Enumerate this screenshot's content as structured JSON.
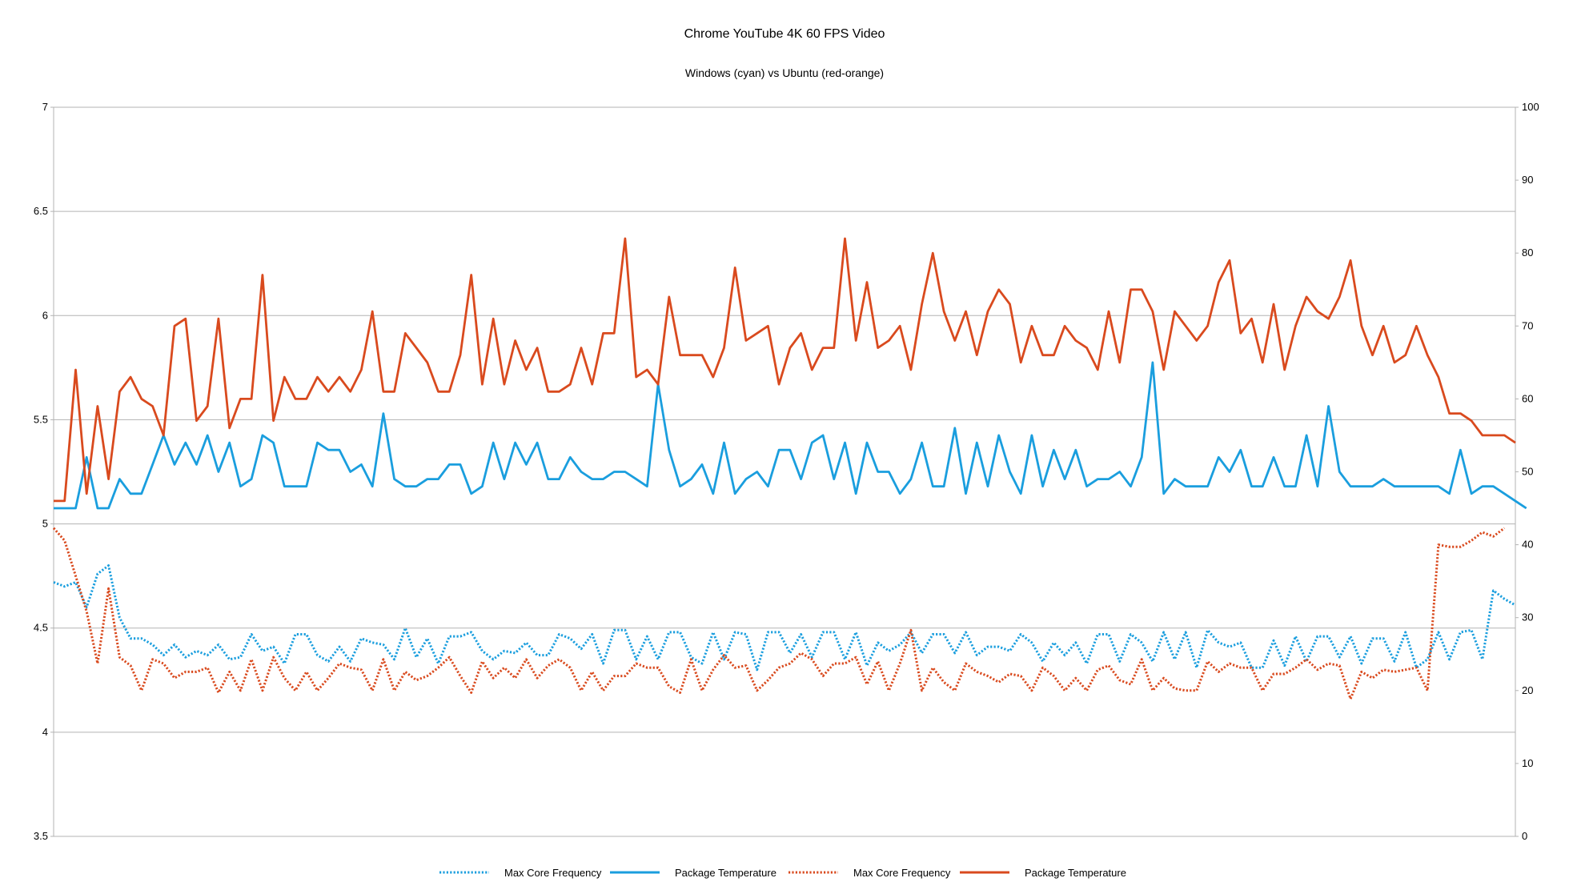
{
  "chart_data": {
    "type": "line",
    "title": "Chrome YouTube 4K 60 FPS Video",
    "subtitle": "Windows (cyan) vs Ubuntu (red-orange)",
    "xlabel": "",
    "ylabel": "",
    "ylim": [
      3.5,
      7
    ],
    "y_ticks": [
      "3.5",
      "4",
      "4.5",
      "5",
      "5.5",
      "6",
      "6.5",
      "7"
    ],
    "y2lim": [
      0,
      100
    ],
    "y2_ticks": [
      "0",
      "10",
      "20",
      "30",
      "40",
      "50",
      "60",
      "70",
      "80",
      "90",
      "100"
    ],
    "grid": true,
    "legend_position": "bottom",
    "colors": {
      "cyan": "#1a9ede",
      "orange": "#d94a1e",
      "grid": "#b3b3b3"
    },
    "series": [
      {
        "name": "Max Core Frequency",
        "axis": "left",
        "color": "#1a9ede",
        "style": "dotted",
        "values": [
          4.72,
          4.7,
          4.72,
          4.6,
          4.76,
          4.8,
          4.55,
          4.45,
          4.45,
          4.42,
          4.37,
          4.42,
          4.36,
          4.39,
          4.37,
          4.42,
          4.35,
          4.36,
          4.47,
          4.39,
          4.41,
          4.33,
          4.47,
          4.47,
          4.37,
          4.34,
          4.41,
          4.34,
          4.45,
          4.43,
          4.42,
          4.35,
          4.5,
          4.36,
          4.45,
          4.33,
          4.46,
          4.46,
          4.48,
          4.39,
          4.35,
          4.39,
          4.38,
          4.43,
          4.37,
          4.37,
          4.47,
          4.45,
          4.4,
          4.47,
          4.33,
          4.49,
          4.49,
          4.35,
          4.46,
          4.35,
          4.48,
          4.48,
          4.36,
          4.33,
          4.48,
          4.35,
          4.48,
          4.47,
          4.3,
          4.48,
          4.48,
          4.38,
          4.47,
          4.36,
          4.48,
          4.48,
          4.35,
          4.48,
          4.32,
          4.43,
          4.39,
          4.42,
          4.48,
          4.38,
          4.47,
          4.47,
          4.38,
          4.48,
          4.37,
          4.41,
          4.41,
          4.39,
          4.47,
          4.43,
          4.34,
          4.43,
          4.37,
          4.43,
          4.33,
          4.47,
          4.47,
          4.34,
          4.47,
          4.43,
          4.34,
          4.48,
          4.35,
          4.48,
          4.31,
          4.49,
          4.43,
          4.41,
          4.43,
          4.31,
          4.31,
          4.44,
          4.32,
          4.46,
          4.34,
          4.46,
          4.46,
          4.36,
          4.46,
          4.33,
          4.45,
          4.45,
          4.34,
          4.48,
          4.31,
          4.35,
          4.48,
          4.35,
          4.48,
          4.49,
          4.35,
          4.68,
          4.64,
          4.61
        ]
      },
      {
        "name": "Package Temperature",
        "axis": "right",
        "color": "#1a9ede",
        "style": "solid",
        "values": [
          45,
          45,
          45,
          52,
          45,
          45,
          49,
          47,
          47,
          51,
          55,
          51,
          54,
          51,
          55,
          50,
          54,
          48,
          49,
          55,
          54,
          48,
          48,
          48,
          54,
          53,
          53,
          50,
          51,
          48,
          58,
          49,
          48,
          48,
          49,
          49,
          51,
          51,
          47,
          48,
          54,
          49,
          54,
          51,
          54,
          49,
          49,
          52,
          50,
          49,
          49,
          50,
          50,
          49,
          48,
          62,
          53,
          48,
          49,
          51,
          47,
          54,
          47,
          49,
          50,
          48,
          53,
          53,
          49,
          54,
          55,
          49,
          54,
          47,
          54,
          50,
          50,
          47,
          49,
          54,
          48,
          48,
          56,
          47,
          54,
          48,
          55,
          50,
          47,
          55,
          48,
          53,
          49,
          53,
          48,
          49,
          49,
          50,
          48,
          52,
          65,
          47,
          49,
          48,
          48,
          48,
          52,
          50,
          53,
          48,
          48,
          52,
          48,
          48,
          55,
          48,
          59,
          50,
          48,
          48,
          48,
          49,
          48,
          48,
          48,
          48,
          48,
          47,
          53,
          47,
          48,
          48,
          47,
          46,
          45
        ]
      },
      {
        "name": "Max Core Frequency",
        "axis": "left",
        "color": "#d94a1e",
        "style": "dotted",
        "values": [
          4.98,
          4.92,
          4.75,
          4.58,
          4.33,
          4.69,
          4.36,
          4.32,
          4.2,
          4.35,
          4.33,
          4.26,
          4.29,
          4.29,
          4.31,
          4.19,
          4.29,
          4.2,
          4.35,
          4.2,
          4.36,
          4.26,
          4.2,
          4.29,
          4.2,
          4.26,
          4.33,
          4.31,
          4.3,
          4.2,
          4.35,
          4.2,
          4.29,
          4.25,
          4.27,
          4.31,
          4.36,
          4.27,
          4.19,
          4.34,
          4.26,
          4.31,
          4.26,
          4.35,
          4.26,
          4.32,
          4.35,
          4.31,
          4.2,
          4.29,
          4.2,
          4.27,
          4.27,
          4.33,
          4.31,
          4.31,
          4.22,
          4.19,
          4.35,
          4.2,
          4.3,
          4.37,
          4.31,
          4.32,
          4.2,
          4.25,
          4.31,
          4.33,
          4.38,
          4.35,
          4.27,
          4.33,
          4.33,
          4.36,
          4.23,
          4.34,
          4.2,
          4.33,
          4.49,
          4.2,
          4.31,
          4.24,
          4.2,
          4.33,
          4.29,
          4.27,
          4.24,
          4.28,
          4.27,
          4.2,
          4.31,
          4.27,
          4.2,
          4.26,
          4.2,
          4.3,
          4.32,
          4.25,
          4.23,
          4.35,
          4.2,
          4.26,
          4.21,
          4.2,
          4.2,
          4.34,
          4.29,
          4.33,
          4.31,
          4.31,
          4.2,
          4.28,
          4.28,
          4.31,
          4.35,
          4.3,
          4.33,
          4.32,
          4.16,
          4.29,
          4.26,
          4.3,
          4.29,
          4.3,
          4.31,
          4.2,
          4.9,
          4.89,
          4.89,
          4.92,
          4.96,
          4.94,
          4.98
        ]
      },
      {
        "name": "Package Temperature",
        "axis": "right",
        "color": "#d94a1e",
        "style": "solid",
        "values": [
          46,
          46,
          64,
          47,
          59,
          49,
          61,
          63,
          60,
          59,
          55,
          70,
          71,
          57,
          59,
          71,
          56,
          60,
          60,
          77,
          57,
          63,
          60,
          60,
          63,
          61,
          63,
          61,
          64,
          72,
          61,
          61,
          69,
          67,
          65,
          61,
          61,
          66,
          77,
          62,
          71,
          62,
          68,
          64,
          67,
          61,
          61,
          62,
          67,
          62,
          69,
          69,
          82,
          63,
          64,
          62,
          74,
          66,
          66,
          66,
          63,
          67,
          78,
          68,
          69,
          70,
          62,
          67,
          69,
          64,
          67,
          67,
          82,
          68,
          76,
          67,
          68,
          70,
          64,
          73,
          80,
          72,
          68,
          72,
          66,
          72,
          75,
          73,
          65,
          70,
          66,
          66,
          70,
          68,
          67,
          64,
          72,
          65,
          75,
          75,
          72,
          64,
          72,
          70,
          68,
          70,
          76,
          79,
          69,
          71,
          65,
          73,
          64,
          70,
          74,
          72,
          71,
          74,
          79,
          70,
          66,
          70,
          65,
          66,
          70,
          66,
          63,
          58,
          58,
          57,
          55,
          55,
          55,
          54
        ]
      }
    ],
    "legend": [
      {
        "label": "Max Core Frequency",
        "color": "#1a9ede",
        "style": "dotted"
      },
      {
        "label": "Package Temperature",
        "color": "#1a9ede",
        "style": "solid"
      },
      {
        "label": "Max Core Frequency",
        "color": "#d94a1e",
        "style": "dotted"
      },
      {
        "label": "Package Temperature",
        "color": "#d94a1e",
        "style": "solid"
      }
    ]
  }
}
